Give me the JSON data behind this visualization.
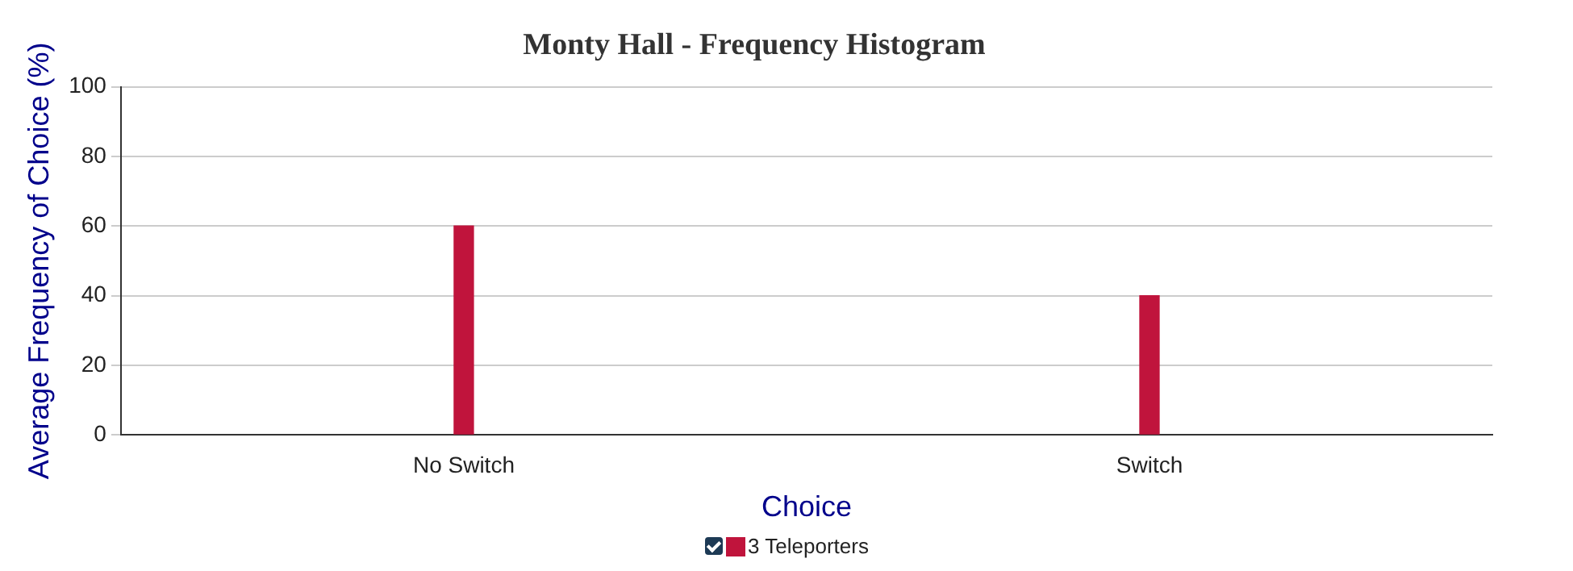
{
  "chart_data": {
    "type": "bar",
    "title": "Monty Hall - Frequency Histogram",
    "xlabel": "Choice",
    "ylabel": "Average Frequency of Choice (%)",
    "categories": [
      "No Switch",
      "Switch"
    ],
    "series": [
      {
        "name": "3 Teleporters",
        "color": "#c0143c",
        "values": [
          60,
          40
        ]
      }
    ],
    "ylim": [
      0,
      100
    ],
    "yticks": [
      0,
      20,
      40,
      60,
      80,
      100
    ],
    "grid": "y",
    "legend": "bottom"
  }
}
